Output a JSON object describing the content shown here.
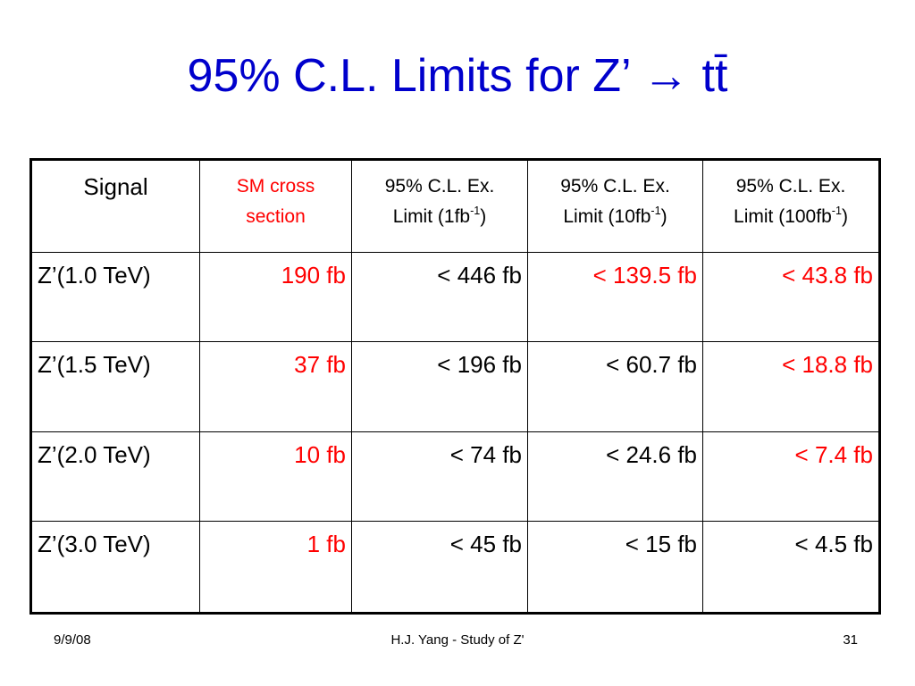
{
  "title": "95% C.L. Limits for Z’ → tt̄",
  "table": {
    "highlight_color": "#ff0000",
    "text_color": "#000000",
    "header": [
      {
        "lines": [
          "Signal"
        ],
        "highlight": false
      },
      {
        "lines": [
          "SM cross section"
        ],
        "highlight": true
      },
      {
        "lines": [
          "95% C.L. Ex."
        ],
        "limit": {
          "prefix": "Limit (1fb",
          "sup": "-1",
          "suffix": ")"
        },
        "highlight": false
      },
      {
        "lines": [
          "95% C.L. Ex."
        ],
        "limit": {
          "prefix": "Limit (10fb",
          "sup": "-1",
          "suffix": ")"
        },
        "highlight": false
      },
      {
        "lines": [
          "95% C.L. Ex."
        ],
        "limit": {
          "prefix": "Limit (100fb",
          "sup": "-1",
          "suffix": ")"
        },
        "highlight": false
      }
    ],
    "rows": [
      [
        {
          "text": "Z’(1.0 TeV)",
          "highlight": false
        },
        {
          "text": "190 fb",
          "highlight": true
        },
        {
          "text": "< 446 fb",
          "highlight": false
        },
        {
          "text": "< 139.5 fb",
          "highlight": true
        },
        {
          "text": "< 43.8 fb",
          "highlight": true
        }
      ],
      [
        {
          "text": "Z’(1.5 TeV)",
          "highlight": false
        },
        {
          "text": "37 fb",
          "highlight": true
        },
        {
          "text": "< 196 fb",
          "highlight": false
        },
        {
          "text": "< 60.7 fb",
          "highlight": false
        },
        {
          "text": "< 18.8 fb",
          "highlight": true
        }
      ],
      [
        {
          "text": "Z’(2.0 TeV)",
          "highlight": false
        },
        {
          "text": "10 fb",
          "highlight": true
        },
        {
          "text": "< 74 fb",
          "highlight": false
        },
        {
          "text": "< 24.6 fb",
          "highlight": false
        },
        {
          "text": "< 7.4 fb",
          "highlight": true
        }
      ],
      [
        {
          "text": "Z’(3.0 TeV)",
          "highlight": false
        },
        {
          "text": "1 fb",
          "highlight": true
        },
        {
          "text": "< 45 fb",
          "highlight": false
        },
        {
          "text": "< 15 fb",
          "highlight": false
        },
        {
          "text": "< 4.5 fb",
          "highlight": false
        }
      ]
    ]
  },
  "footer": {
    "date": "9/9/08",
    "center": "H.J. Yang - Study of Z'",
    "page": "31"
  }
}
